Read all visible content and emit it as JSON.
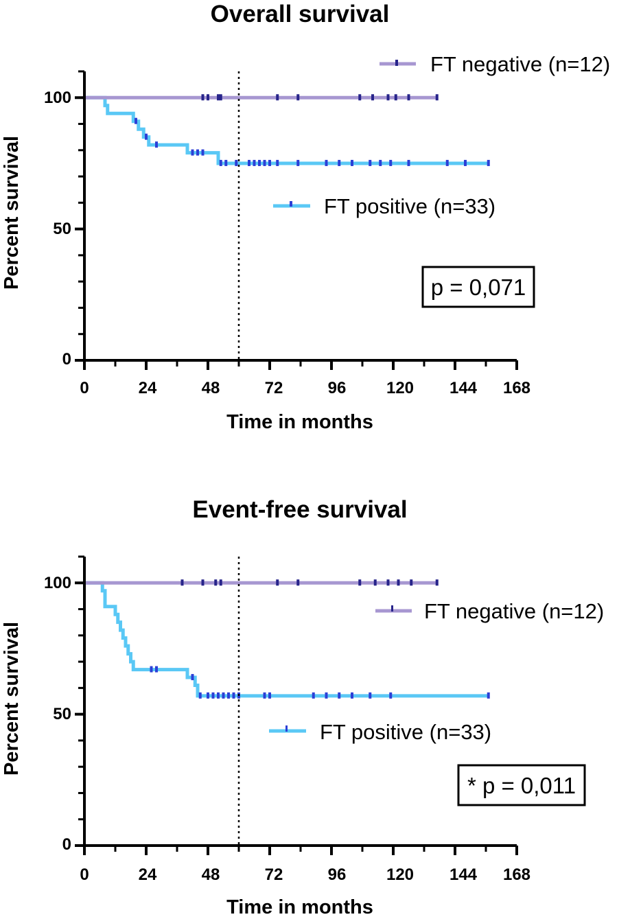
{
  "chart_data": [
    {
      "type": "line",
      "title": "Overall survival",
      "xlabel": "Time in months",
      "ylabel": "Percent survival",
      "xlim": [
        0,
        168
      ],
      "ylim": [
        0,
        110
      ],
      "xticks": [
        "0",
        "24",
        "48",
        "72",
        "96",
        "120",
        "144",
        "168"
      ],
      "yticks": [
        "0",
        "50",
        "100"
      ],
      "reference_line_x": 60,
      "p_value": "p = 0,071",
      "series": [
        {
          "name": "FT negative (n=12)",
          "color": "#a797d1",
          "censor_color": "#27248a",
          "steps": [
            [
              0,
              100
            ],
            [
              137,
              100
            ]
          ],
          "censored": [
            46,
            48,
            52,
            53,
            75,
            83,
            107,
            112,
            118,
            121,
            126,
            137
          ]
        },
        {
          "name": "FT positive (n=33)",
          "color": "#5ac8f5",
          "censor_color": "#2c3fd6",
          "steps": [
            [
              0,
              100
            ],
            [
              8,
              97
            ],
            [
              9,
              94
            ],
            [
              19,
              91
            ],
            [
              21,
              88
            ],
            [
              23,
              85
            ],
            [
              25,
              82
            ],
            [
              40,
              79
            ],
            [
              52,
              75
            ],
            [
              157,
              75
            ]
          ],
          "censored": [
            20,
            24,
            28,
            42,
            44,
            46,
            53,
            55,
            59,
            64,
            66,
            68,
            70,
            72,
            75,
            83,
            94,
            99,
            104,
            111,
            115,
            119,
            126,
            141,
            148,
            157
          ]
        }
      ]
    },
    {
      "type": "line",
      "title": "Event-free survival",
      "xlabel": "Time in months",
      "ylabel": "Percent survival",
      "xlim": [
        0,
        168
      ],
      "ylim": [
        0,
        110
      ],
      "xticks": [
        "0",
        "24",
        "48",
        "72",
        "96",
        "120",
        "144",
        "168"
      ],
      "yticks": [
        "0",
        "50",
        "100"
      ],
      "reference_line_x": 60,
      "p_value": "* p = 0,011",
      "series": [
        {
          "name": "FT negative (n=12)",
          "color": "#a797d1",
          "censor_color": "#27248a",
          "steps": [
            [
              0,
              100
            ],
            [
              137,
              100
            ]
          ],
          "censored": [
            38,
            46,
            51,
            53,
            75,
            83,
            107,
            113,
            118,
            122,
            127,
            137
          ]
        },
        {
          "name": "FT positive (n=33)",
          "color": "#5ac8f5",
          "censor_color": "#2c3fd6",
          "steps": [
            [
              0,
              100
            ],
            [
              7,
              97
            ],
            [
              8,
              91
            ],
            [
              12,
              88
            ],
            [
              13,
              85
            ],
            [
              14,
              82
            ],
            [
              15,
              79
            ],
            [
              16,
              76
            ],
            [
              17,
              73
            ],
            [
              18,
              70
            ],
            [
              19,
              67
            ],
            [
              40,
              64
            ],
            [
              43,
              61
            ],
            [
              44,
              57
            ],
            [
              157,
              57
            ]
          ],
          "censored": [
            26,
            28,
            42,
            45,
            48,
            50,
            52,
            54,
            56,
            58,
            60,
            70,
            72,
            89,
            94,
            99,
            104,
            111,
            119,
            157
          ]
        }
      ]
    }
  ]
}
